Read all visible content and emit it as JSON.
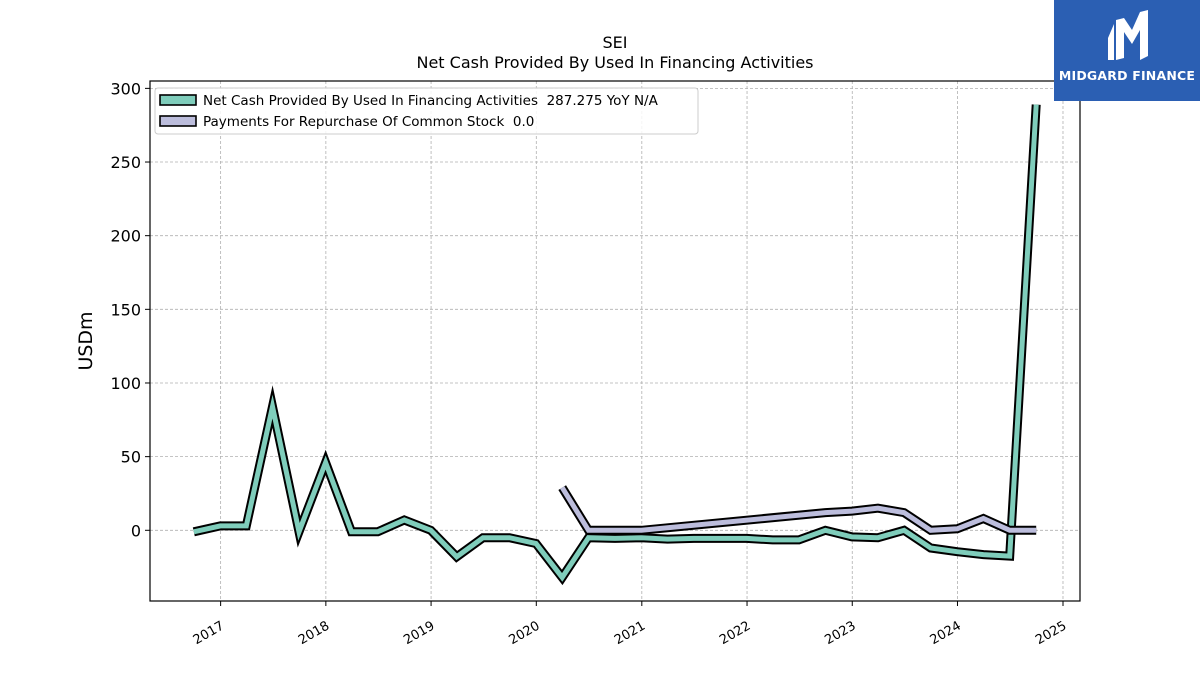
{
  "chart_data": {
    "type": "line",
    "title": "SEI",
    "subtitle": "Net Cash Provided By Used In Financing Activities",
    "ylabel": "USDm",
    "xlabel": "",
    "xlim": [
      "2016-05-01",
      "2025-03-01"
    ],
    "ylim": [
      -48,
      305
    ],
    "yticks": [
      0,
      50,
      100,
      150,
      200,
      250,
      300
    ],
    "xticks": [
      "2017",
      "2018",
      "2019",
      "2020",
      "2021",
      "2022",
      "2023",
      "2024",
      "2025"
    ],
    "grid": true,
    "legend_position": "top-left",
    "series": [
      {
        "name": "Net Cash Provided By Used In Financing Activities  287.275 YoY N/A",
        "color": "#7fcdbb",
        "x": [
          "2016-09-30",
          "2016-12-31",
          "2017-03-31",
          "2017-06-30",
          "2017-09-30",
          "2017-12-31",
          "2018-03-31",
          "2018-06-30",
          "2018-09-30",
          "2018-12-31",
          "2019-03-31",
          "2019-06-30",
          "2019-09-30",
          "2019-12-31",
          "2020-03-31",
          "2020-06-30",
          "2020-09-30",
          "2020-12-31",
          "2021-03-31",
          "2021-06-30",
          "2021-09-30",
          "2021-12-31",
          "2022-03-31",
          "2022-06-30",
          "2022-09-30",
          "2022-12-31",
          "2023-03-31",
          "2023-06-30",
          "2023-09-30",
          "2023-12-31",
          "2024-03-31",
          "2024-06-30",
          "2024-09-30"
        ],
        "values": [
          -1,
          3,
          3,
          84,
          -1,
          46,
          -1,
          -1,
          7,
          0,
          -18,
          -5,
          -5,
          -9,
          -32,
          -5,
          -5.5,
          -5,
          -6,
          -5.5,
          -5.5,
          -5.5,
          -6.5,
          -6.5,
          0,
          -4.5,
          -5,
          0,
          -12,
          -14.5,
          -16.5,
          -17.5,
          289
        ]
      },
      {
        "name": "Payments For Repurchase Of Common Stock  0.0",
        "color": "#bcbddc",
        "x": [
          "2020-03-31",
          "2020-06-30",
          "2020-09-30",
          "2020-12-31",
          "2022-09-30",
          "2022-12-31",
          "2023-03-31",
          "2023-06-30",
          "2023-09-30",
          "2023-12-31",
          "2024-03-31",
          "2024-06-30",
          "2024-09-30"
        ],
        "values": [
          29,
          0,
          0,
          0,
          12,
          13,
          15,
          12,
          0,
          1,
          8,
          0,
          0
        ]
      }
    ]
  },
  "logo": {
    "text": "MIDGARD FINANCE",
    "icon": "midgard-m-logo-icon",
    "color": "#2b5fb3"
  }
}
